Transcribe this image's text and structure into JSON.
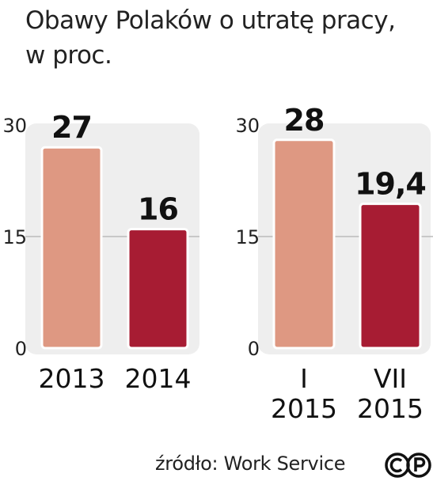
{
  "title_line1": "Obawy Polaków o utratę pracy,",
  "title_line2": "w proc.",
  "source": "źródło: Work Service",
  "license_badge": "CP",
  "colors": {
    "light": "#DE9882",
    "dark": "#A71C33",
    "panel": "#EEEEEE",
    "grid": "#BBBBBB"
  },
  "chart_data": [
    {
      "type": "bar",
      "categories": [
        "2013",
        "2014"
      ],
      "values": [
        27,
        16
      ],
      "value_labels": [
        "27",
        "16"
      ],
      "yticks": [
        0,
        15,
        30
      ],
      "ylim": [
        0,
        30
      ],
      "title": "",
      "xlabel": "",
      "ylabel": ""
    },
    {
      "type": "bar",
      "categories": [
        [
          "I",
          "2015"
        ],
        [
          "VII",
          "2015"
        ]
      ],
      "values": [
        28,
        19.4
      ],
      "value_labels": [
        "28",
        "19,4"
      ],
      "yticks": [
        0,
        15,
        30
      ],
      "ylim": [
        0,
        30
      ],
      "title": "",
      "xlabel": "",
      "ylabel": ""
    }
  ]
}
